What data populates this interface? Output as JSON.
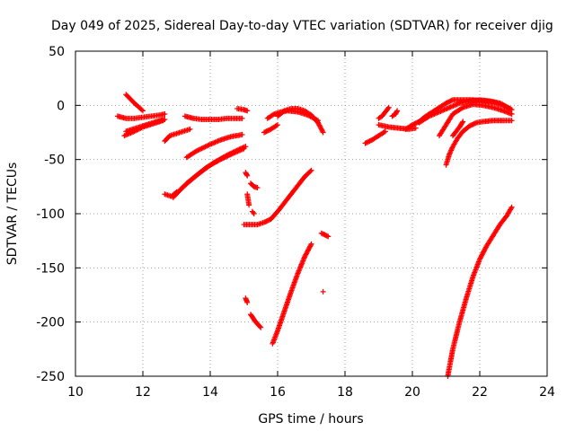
{
  "chart_data": {
    "type": "scatter",
    "title": "Day 049 of 2025, Sidereal Day-to-day VTEC variation (SDTVAR) for receiver djig",
    "xlabel": "GPS time / hours",
    "ylabel": "SDTVAR / TECUs",
    "xlim": [
      10,
      24
    ],
    "ylim": [
      -250,
      50
    ],
    "x_ticks": [
      "10",
      "12",
      "14",
      "16",
      "18",
      "20",
      "22",
      "24"
    ],
    "y_ticks": [
      "50",
      "0",
      "-50",
      "-100",
      "-150",
      "-200",
      "-250"
    ],
    "grid": true,
    "marker": "+",
    "color": "#ff0000",
    "series_segments": [
      {
        "kind": "line",
        "x": [
          11.5,
          11.75,
          12.0
        ],
        "y": [
          10,
          2,
          -5
        ]
      },
      {
        "kind": "line",
        "x": [
          11.25,
          11.5,
          11.75,
          12.0,
          12.25,
          12.5,
          12.65
        ],
        "y": [
          -10,
          -12,
          -12,
          -11,
          -10,
          -9,
          -8
        ]
      },
      {
        "kind": "line",
        "x": [
          11.45,
          11.75,
          12.0,
          12.3,
          12.6
        ],
        "y": [
          -28,
          -24,
          -20,
          -17,
          -14
        ]
      },
      {
        "kind": "line",
        "x": [
          11.5,
          11.8,
          12.1,
          12.4,
          12.65
        ],
        "y": [
          -24,
          -21,
          -18,
          -15,
          -13
        ]
      },
      {
        "kind": "line",
        "x": [
          12.65,
          12.85,
          13.0
        ],
        "y": [
          -82,
          -84,
          -80
        ]
      },
      {
        "kind": "line",
        "x": [
          12.65,
          12.8,
          13.0,
          13.2,
          13.4
        ],
        "y": [
          -33,
          -28,
          -26,
          -24,
          -22
        ]
      },
      {
        "kind": "line",
        "x": [
          13.25,
          13.5,
          13.75,
          14.0,
          14.25,
          14.5,
          14.75,
          14.95
        ],
        "y": [
          -10,
          -12,
          -13,
          -13,
          -13,
          -12,
          -12,
          -12
        ]
      },
      {
        "kind": "line",
        "x": [
          14.8,
          15.0,
          15.1
        ],
        "y": [
          -3,
          -4,
          -5
        ]
      },
      {
        "kind": "line",
        "x": [
          13.3,
          13.6,
          14.0,
          14.3,
          14.6,
          14.95
        ],
        "y": [
          -48,
          -42,
          -36,
          -32,
          -29,
          -27
        ]
      },
      {
        "kind": "line",
        "x": [
          13.1,
          13.5,
          13.9,
          14.3,
          14.7,
          15.0
        ],
        "y": [
          -78,
          -67,
          -57,
          -50,
          -44,
          -40
        ]
      },
      {
        "kind": "line",
        "x": [
          12.9,
          13.3,
          13.7,
          14.1,
          14.5,
          14.9,
          15.05
        ],
        "y": [
          -85,
          -72,
          -62,
          -53,
          -46,
          -40,
          -38
        ]
      },
      {
        "kind": "line",
        "x": [
          15.05,
          15.1
        ],
        "y": [
          -62,
          -65
        ]
      },
      {
        "kind": "line",
        "x": [
          15.2,
          15.3,
          15.4
        ],
        "y": [
          -72,
          -75,
          -76
        ]
      },
      {
        "kind": "line",
        "x": [
          15.1,
          15.15
        ],
        "y": [
          -82,
          -92
        ]
      },
      {
        "kind": "line",
        "x": [
          15.25,
          15.3
        ],
        "y": [
          -98,
          -100
        ]
      },
      {
        "kind": "line",
        "x": [
          15.0,
          15.2,
          15.4,
          15.6,
          15.8
        ],
        "y": [
          -110,
          -110,
          -110,
          -108,
          -105
        ]
      },
      {
        "kind": "line",
        "x": [
          15.8,
          16.0,
          16.2,
          16.4,
          16.6,
          16.8,
          17.0
        ],
        "y": [
          -105,
          -98,
          -90,
          -82,
          -74,
          -66,
          -60
        ]
      },
      {
        "kind": "line",
        "x": [
          16.0,
          16.2,
          16.4,
          16.6,
          16.8,
          17.0,
          17.2,
          17.35
        ],
        "y": [
          -10,
          -5,
          -3,
          -3,
          -5,
          -9,
          -16,
          -25
        ]
      },
      {
        "kind": "line",
        "x": [
          15.7,
          15.9,
          16.1,
          16.3,
          16.6,
          16.9,
          17.2
        ],
        "y": [
          -12,
          -8,
          -6,
          -5,
          -6,
          -9,
          -14
        ]
      },
      {
        "kind": "line",
        "x": [
          15.6,
          15.8,
          16.0
        ],
        "y": [
          -25,
          -22,
          -18
        ]
      },
      {
        "kind": "line",
        "x": [
          17.3,
          17.5
        ],
        "y": [
          -118,
          -121
        ]
      },
      {
        "kind": "line",
        "x": [
          17.35
        ],
        "y": [
          -172
        ]
      },
      {
        "kind": "line",
        "x": [
          15.05,
          15.1
        ],
        "y": [
          -178,
          -182
        ]
      },
      {
        "kind": "line",
        "x": [
          15.2,
          15.35,
          15.5
        ],
        "y": [
          -193,
          -200,
          -205
        ]
      },
      {
        "kind": "line",
        "x": [
          15.85,
          16.0,
          16.2,
          16.4,
          16.6,
          16.8,
          17.0
        ],
        "y": [
          -220,
          -208,
          -190,
          -172,
          -155,
          -140,
          -128
        ]
      },
      {
        "kind": "line",
        "x": [
          18.6,
          18.8,
          19.0,
          19.2
        ],
        "y": [
          -35,
          -32,
          -28,
          -24
        ]
      },
      {
        "kind": "line",
        "x": [
          19.0,
          19.1,
          19.2,
          19.3
        ],
        "y": [
          -12,
          -10,
          -6,
          -2
        ]
      },
      {
        "kind": "line",
        "x": [
          19.4,
          19.5,
          19.55
        ],
        "y": [
          -10,
          -8,
          -5
        ]
      },
      {
        "kind": "line",
        "x": [
          19.0,
          19.3,
          19.6,
          19.9,
          20.1
        ],
        "y": [
          -18,
          -20,
          -21,
          -22,
          -21
        ]
      },
      {
        "kind": "line",
        "x": [
          19.8,
          20.0,
          20.2,
          20.4,
          20.6,
          20.8,
          21.0,
          21.2,
          21.5,
          21.8,
          22.1,
          22.4,
          22.7,
          22.95
        ],
        "y": [
          -22,
          -18,
          -15,
          -10,
          -6,
          -2,
          2,
          5,
          5,
          5,
          4,
          3,
          0,
          -4
        ]
      },
      {
        "kind": "line",
        "x": [
          20.2,
          20.5,
          20.8,
          21.1,
          21.4,
          21.7,
          22.0,
          22.3,
          22.6,
          22.9
        ],
        "y": [
          -16,
          -10,
          -6,
          -2,
          2,
          4,
          5,
          4,
          2,
          -3
        ]
      },
      {
        "kind": "line",
        "x": [
          20.8,
          21.0,
          21.2,
          21.5,
          21.8,
          22.1,
          22.4,
          22.7,
          22.95
        ],
        "y": [
          -28,
          -18,
          -8,
          -2,
          1,
          0,
          -2,
          -5,
          -8
        ]
      },
      {
        "kind": "line",
        "x": [
          21.0,
          21.1,
          21.2,
          21.35,
          21.5,
          21.7,
          21.9,
          22.1,
          22.4,
          22.7,
          22.95
        ],
        "y": [
          -55,
          -45,
          -38,
          -30,
          -24,
          -19,
          -16,
          -15,
          -14,
          -14,
          -14
        ]
      },
      {
        "kind": "line",
        "x": [
          21.2,
          21.3,
          21.4,
          21.5
        ],
        "y": [
          -28,
          -24,
          -20,
          -15
        ]
      },
      {
        "kind": "line",
        "x": [
          21.05,
          21.2,
          21.4,
          21.6,
          21.8,
          22.0,
          22.2,
          22.4,
          22.6,
          22.8,
          22.95
        ],
        "y": [
          -250,
          -225,
          -200,
          -178,
          -158,
          -142,
          -130,
          -120,
          -110,
          -102,
          -94
        ]
      }
    ]
  }
}
